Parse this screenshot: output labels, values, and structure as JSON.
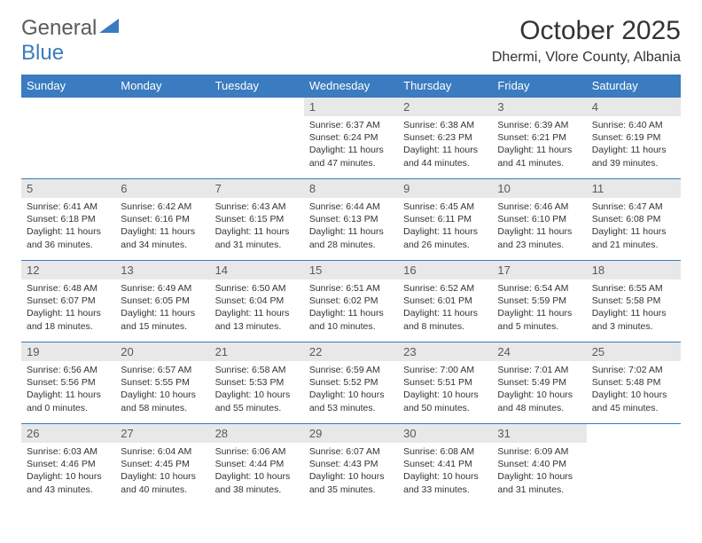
{
  "logo": {
    "part1": "General",
    "part2": "Blue"
  },
  "title": "October 2025",
  "location": "Dhermi, Vlore County, Albania",
  "colors": {
    "header_bg": "#3b7bbf",
    "header_text": "#ffffff",
    "daynum_bg": "#e8e8e8",
    "rule": "#3b7bbf",
    "text": "#333333"
  },
  "weekdays": [
    "Sunday",
    "Monday",
    "Tuesday",
    "Wednesday",
    "Thursday",
    "Friday",
    "Saturday"
  ],
  "weeks": [
    [
      null,
      null,
      null,
      {
        "n": "1",
        "sr": "6:37 AM",
        "ss": "6:24 PM",
        "dl": "11 hours and 47 minutes."
      },
      {
        "n": "2",
        "sr": "6:38 AM",
        "ss": "6:23 PM",
        "dl": "11 hours and 44 minutes."
      },
      {
        "n": "3",
        "sr": "6:39 AM",
        "ss": "6:21 PM",
        "dl": "11 hours and 41 minutes."
      },
      {
        "n": "4",
        "sr": "6:40 AM",
        "ss": "6:19 PM",
        "dl": "11 hours and 39 minutes."
      }
    ],
    [
      {
        "n": "5",
        "sr": "6:41 AM",
        "ss": "6:18 PM",
        "dl": "11 hours and 36 minutes."
      },
      {
        "n": "6",
        "sr": "6:42 AM",
        "ss": "6:16 PM",
        "dl": "11 hours and 34 minutes."
      },
      {
        "n": "7",
        "sr": "6:43 AM",
        "ss": "6:15 PM",
        "dl": "11 hours and 31 minutes."
      },
      {
        "n": "8",
        "sr": "6:44 AM",
        "ss": "6:13 PM",
        "dl": "11 hours and 28 minutes."
      },
      {
        "n": "9",
        "sr": "6:45 AM",
        "ss": "6:11 PM",
        "dl": "11 hours and 26 minutes."
      },
      {
        "n": "10",
        "sr": "6:46 AM",
        "ss": "6:10 PM",
        "dl": "11 hours and 23 minutes."
      },
      {
        "n": "11",
        "sr": "6:47 AM",
        "ss": "6:08 PM",
        "dl": "11 hours and 21 minutes."
      }
    ],
    [
      {
        "n": "12",
        "sr": "6:48 AM",
        "ss": "6:07 PM",
        "dl": "11 hours and 18 minutes."
      },
      {
        "n": "13",
        "sr": "6:49 AM",
        "ss": "6:05 PM",
        "dl": "11 hours and 15 minutes."
      },
      {
        "n": "14",
        "sr": "6:50 AM",
        "ss": "6:04 PM",
        "dl": "11 hours and 13 minutes."
      },
      {
        "n": "15",
        "sr": "6:51 AM",
        "ss": "6:02 PM",
        "dl": "11 hours and 10 minutes."
      },
      {
        "n": "16",
        "sr": "6:52 AM",
        "ss": "6:01 PM",
        "dl": "11 hours and 8 minutes."
      },
      {
        "n": "17",
        "sr": "6:54 AM",
        "ss": "5:59 PM",
        "dl": "11 hours and 5 minutes."
      },
      {
        "n": "18",
        "sr": "6:55 AM",
        "ss": "5:58 PM",
        "dl": "11 hours and 3 minutes."
      }
    ],
    [
      {
        "n": "19",
        "sr": "6:56 AM",
        "ss": "5:56 PM",
        "dl": "11 hours and 0 minutes."
      },
      {
        "n": "20",
        "sr": "6:57 AM",
        "ss": "5:55 PM",
        "dl": "10 hours and 58 minutes."
      },
      {
        "n": "21",
        "sr": "6:58 AM",
        "ss": "5:53 PM",
        "dl": "10 hours and 55 minutes."
      },
      {
        "n": "22",
        "sr": "6:59 AM",
        "ss": "5:52 PM",
        "dl": "10 hours and 53 minutes."
      },
      {
        "n": "23",
        "sr": "7:00 AM",
        "ss": "5:51 PM",
        "dl": "10 hours and 50 minutes."
      },
      {
        "n": "24",
        "sr": "7:01 AM",
        "ss": "5:49 PM",
        "dl": "10 hours and 48 minutes."
      },
      {
        "n": "25",
        "sr": "7:02 AM",
        "ss": "5:48 PM",
        "dl": "10 hours and 45 minutes."
      }
    ],
    [
      {
        "n": "26",
        "sr": "6:03 AM",
        "ss": "4:46 PM",
        "dl": "10 hours and 43 minutes."
      },
      {
        "n": "27",
        "sr": "6:04 AM",
        "ss": "4:45 PM",
        "dl": "10 hours and 40 minutes."
      },
      {
        "n": "28",
        "sr": "6:06 AM",
        "ss": "4:44 PM",
        "dl": "10 hours and 38 minutes."
      },
      {
        "n": "29",
        "sr": "6:07 AM",
        "ss": "4:43 PM",
        "dl": "10 hours and 35 minutes."
      },
      {
        "n": "30",
        "sr": "6:08 AM",
        "ss": "4:41 PM",
        "dl": "10 hours and 33 minutes."
      },
      {
        "n": "31",
        "sr": "6:09 AM",
        "ss": "4:40 PM",
        "dl": "10 hours and 31 minutes."
      },
      null
    ]
  ],
  "labels": {
    "sunrise": "Sunrise: ",
    "sunset": "Sunset: ",
    "daylight": "Daylight: "
  }
}
